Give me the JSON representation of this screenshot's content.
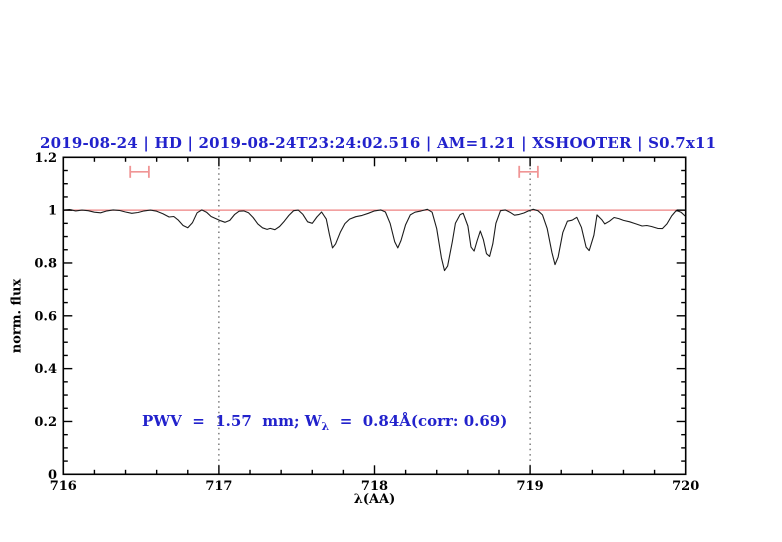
{
  "header": {
    "title": "2019-08-24 | HD | 2019-08-24T23:24:02.516 | AM=1.21 | XSHOOTER | S0.7x11"
  },
  "annotation": {
    "full_text": "PWV  =  1.57  mm; W_λ  =  0.84Å(corr: 0.69)",
    "prefix": "PWV  =  1.57  mm; W",
    "subscript": "λ",
    "suffix": "  =  0.84Å(corr: 0.69)",
    "pwv_mm": 1.57,
    "w_lambda_angstrom": 0.84,
    "corr": 0.69
  },
  "colors": {
    "title_text": "#2222cc",
    "annotation_text": "#2222cc",
    "continuum_line": "#ee8080",
    "range_marker": "#f09595",
    "spectrum_line": "#1c1c1c",
    "axis": "#000000",
    "dotted_line": "#3a3a3a"
  },
  "chart_data": {
    "type": "line",
    "title": "2019-08-24 | HD | 2019-08-24T23:24:02.516 | AM=1.21 | XSHOOTER | S0.7x11",
    "xlabel": "λ(AA)",
    "ylabel": "norm. flux",
    "xlim": [
      716,
      720
    ],
    "ylim": [
      0,
      1.2
    ],
    "x_minor_step": 0.2,
    "y_minor_step": 0.05,
    "grid": false,
    "legend": "none",
    "x_ticks": [
      {
        "v": 716,
        "label": "716"
      },
      {
        "v": 717,
        "label": "717"
      },
      {
        "v": 718,
        "label": "718"
      },
      {
        "v": 719,
        "label": "719"
      },
      {
        "v": 720,
        "label": "720"
      }
    ],
    "y_ticks": [
      {
        "v": 0,
        "label": "0"
      },
      {
        "v": 0.2,
        "label": "0.2"
      },
      {
        "v": 0.4,
        "label": "0.4"
      },
      {
        "v": 0.6,
        "label": "0.6"
      },
      {
        "v": 0.8,
        "label": "0.8"
      },
      {
        "v": 1,
        "label": "1"
      },
      {
        "v": 1.2,
        "label": "1.2"
      }
    ],
    "dotted_vlines": [
      717,
      719
    ],
    "continuum_level": 1.0,
    "range_markers": [
      {
        "x1": 716.43,
        "x2": 716.55,
        "y": 1.145
      },
      {
        "x1": 718.93,
        "x2": 719.05,
        "y": 1.145
      }
    ],
    "series": [
      {
        "name": "normalized-spectrum",
        "x": [
          716.0,
          716.04,
          716.08,
          716.12,
          716.16,
          716.2,
          716.24,
          716.28,
          716.32,
          716.36,
          716.4,
          716.44,
          716.48,
          716.52,
          716.56,
          716.6,
          716.64,
          716.68,
          716.71,
          716.74,
          716.77,
          716.8,
          716.83,
          716.86,
          716.89,
          716.92,
          716.95,
          716.98,
          717.01,
          717.04,
          717.07,
          717.1,
          717.13,
          717.16,
          717.19,
          717.22,
          717.25,
          717.28,
          717.31,
          717.33,
          717.36,
          717.39,
          717.42,
          717.45,
          717.48,
          717.51,
          717.54,
          717.57,
          717.6,
          717.63,
          717.66,
          717.69,
          717.71,
          717.73,
          717.75,
          717.78,
          717.81,
          717.84,
          717.88,
          717.92,
          717.96,
          718.0,
          718.04,
          718.07,
          718.1,
          718.13,
          718.15,
          718.17,
          718.2,
          718.23,
          718.26,
          718.3,
          718.34,
          718.37,
          718.4,
          718.43,
          718.45,
          718.47,
          718.5,
          718.52,
          718.55,
          718.57,
          718.6,
          718.62,
          718.64,
          718.66,
          718.68,
          718.7,
          718.72,
          718.74,
          718.76,
          718.78,
          718.81,
          718.84,
          718.87,
          718.9,
          718.93,
          718.96,
          718.99,
          719.02,
          719.05,
          719.08,
          719.11,
          719.14,
          719.16,
          719.18,
          719.21,
          719.24,
          719.27,
          719.3,
          719.33,
          719.36,
          719.38,
          719.41,
          719.43,
          719.46,
          719.48,
          719.51,
          719.54,
          719.57,
          719.6,
          719.64,
          719.68,
          719.72,
          719.75,
          719.78,
          719.82,
          719.85,
          719.88,
          719.91,
          719.94,
          719.97,
          720.0
        ],
        "y": [
          1.0,
          1.002,
          0.997,
          1.0,
          0.998,
          0.992,
          0.99,
          0.997,
          1.001,
          0.999,
          0.993,
          0.988,
          0.991,
          0.997,
          1.0,
          0.996,
          0.986,
          0.974,
          0.976,
          0.962,
          0.942,
          0.933,
          0.952,
          0.99,
          1.001,
          0.992,
          0.976,
          0.968,
          0.96,
          0.954,
          0.961,
          0.983,
          0.996,
          0.997,
          0.99,
          0.972,
          0.948,
          0.933,
          0.927,
          0.931,
          0.926,
          0.938,
          0.958,
          0.98,
          0.998,
          1.0,
          0.984,
          0.956,
          0.95,
          0.974,
          0.993,
          0.966,
          0.908,
          0.857,
          0.872,
          0.916,
          0.949,
          0.966,
          0.975,
          0.98,
          0.988,
          0.997,
          1.001,
          0.993,
          0.95,
          0.88,
          0.857,
          0.885,
          0.945,
          0.982,
          0.992,
          0.997,
          1.003,
          0.992,
          0.93,
          0.82,
          0.771,
          0.788,
          0.88,
          0.95,
          0.983,
          0.988,
          0.94,
          0.86,
          0.845,
          0.885,
          0.921,
          0.888,
          0.835,
          0.825,
          0.872,
          0.95,
          0.998,
          1.001,
          0.992,
          0.981,
          0.984,
          0.989,
          0.997,
          1.003,
          0.998,
          0.982,
          0.93,
          0.84,
          0.794,
          0.822,
          0.915,
          0.958,
          0.962,
          0.973,
          0.935,
          0.86,
          0.847,
          0.905,
          0.982,
          0.964,
          0.948,
          0.958,
          0.972,
          0.968,
          0.961,
          0.956,
          0.948,
          0.94,
          0.942,
          0.938,
          0.931,
          0.93,
          0.948,
          0.978,
          0.999,
          0.992,
          0.976
        ]
      }
    ]
  }
}
